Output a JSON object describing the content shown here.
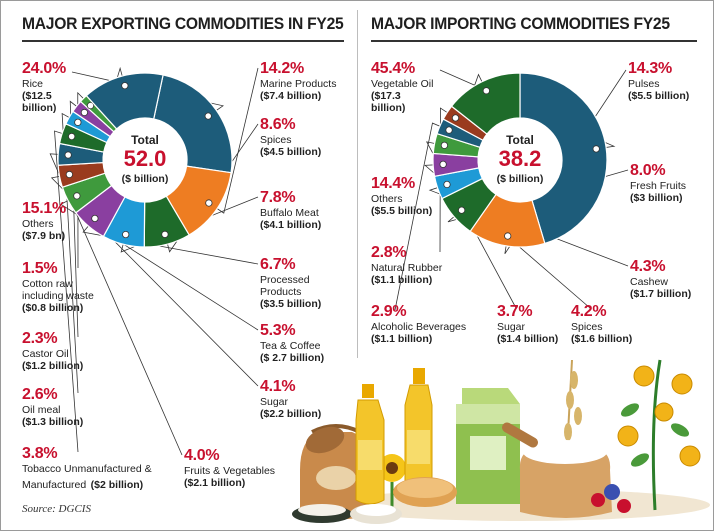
{
  "left": {
    "title": "MAJOR EXPORTING COMMODITIES IN FY25",
    "center": {
      "label": "Total",
      "value": "52.0",
      "unit": "($ billion)"
    },
    "labels": [
      {
        "pct": "24.0%",
        "name": "Rice",
        "amount": "($12.5",
        "amount2": "billion)"
      },
      {
        "pct": "14.2%",
        "name": "Marine Products",
        "amount": "($7.4 billion)"
      },
      {
        "pct": "8.6%",
        "name": "Spices",
        "amount": "($4.5 billion)"
      },
      {
        "pct": "7.8%",
        "name": "Buffalo Meat",
        "amount": "($4.1 billion)"
      },
      {
        "pct": "6.7%",
        "name": "Processed",
        "name2": "Products",
        "amount": "($3.5 billion)"
      },
      {
        "pct": "5.3%",
        "name": "Tea & Coffee",
        "amount": "($ 2.7 billion)"
      },
      {
        "pct": "4.1%",
        "name": "Sugar",
        "amount": "($2.2 billion)"
      },
      {
        "pct": "4.0%",
        "name": "Fruits & Vegetables",
        "amount": "($2.1 billion)"
      },
      {
        "pct": "3.8%",
        "name": "Tobacco Unmanufactured &",
        "name2": "Manufactured",
        "amount": "($2 billion)"
      },
      {
        "pct": "2.6%",
        "name": "Oil meal",
        "amount": "($1.3 billion)"
      },
      {
        "pct": "2.3%",
        "name": "Castor Oil",
        "amount": "($1.2 billion)"
      },
      {
        "pct": "1.5%",
        "name": "Cotton raw",
        "name2": "including waste",
        "amount": "($0.8 billion)"
      },
      {
        "pct": "15.1%",
        "name": "Others",
        "amount": "($7.9 bn)"
      }
    ]
  },
  "right": {
    "title": "MAJOR IMPORTING COMMODITIES FY25",
    "center": {
      "label": "Total",
      "value": "38.2",
      "unit": "($ billion)"
    },
    "labels": [
      {
        "pct": "45.4%",
        "name": "Vegetable Oil",
        "amount": "($17.3",
        "amount2": "billion)"
      },
      {
        "pct": "14.3%",
        "name": "Pulses",
        "amount": "($5.5 billion)"
      },
      {
        "pct": "8.0%",
        "name": "Fresh Fruits",
        "amount": "($3 billion)"
      },
      {
        "pct": "4.3%",
        "name": "Cashew",
        "amount": "($1.7 billion)"
      },
      {
        "pct": "4.2%",
        "name": "Spices",
        "amount": "($1.6 billion)"
      },
      {
        "pct": "3.7%",
        "name": "Sugar",
        "amount": "($1.4 billion)"
      },
      {
        "pct": "2.9%",
        "name": "Alcoholic Beverages",
        "amount": "($1.1 billion)"
      },
      {
        "pct": "2.8%",
        "name": "Natural Rubber",
        "amount": "($1.1 billion)"
      },
      {
        "pct": "14.4%",
        "name": "Others",
        "amount": "($5.5 billion)"
      }
    ]
  },
  "source": "Source: DGCIS",
  "colors": {
    "accent_red": "#c8102e",
    "teal": "#1d5c7a",
    "orange": "#ee7d22",
    "green": "#1e6b2a",
    "sky": "#1e9ad6",
    "purple": "#8a3fa0",
    "olive": "#3f9a3d",
    "brown": "#9a3b1e"
  },
  "chart_data": [
    {
      "type": "pie",
      "title": "MAJOR EXPORTING COMMODITIES IN FY25",
      "unit": "$ billion",
      "total": 52.0,
      "categories": [
        "Rice",
        "Marine Products",
        "Spices",
        "Buffalo Meat",
        "Processed Products",
        "Tea & Coffee",
        "Sugar",
        "Fruits & Vegetables",
        "Tobacco Unmanufactured & Manufactured",
        "Oil meal",
        "Castor Oil",
        "Cotton raw including waste",
        "Others"
      ],
      "values": [
        24.0,
        14.2,
        8.6,
        7.8,
        6.7,
        5.3,
        4.1,
        4.0,
        3.8,
        2.6,
        2.3,
        1.5,
        15.1
      ],
      "amounts": [
        12.5,
        7.4,
        4.5,
        4.1,
        3.5,
        2.7,
        2.2,
        2.1,
        2.0,
        1.3,
        1.2,
        0.8,
        7.9
      ],
      "colors": [
        "#1d5c7a",
        "#ee7d22",
        "#1e6b2a",
        "#1e9ad6",
        "#8a3fa0",
        "#3f9a3d",
        "#9a3b1e",
        "#1d5c7a",
        "#1e6b2a",
        "#1e9ad6",
        "#8a3fa0",
        "#3f9a3d",
        "#1d5c7a"
      ]
    },
    {
      "type": "pie",
      "title": "MAJOR IMPORTING COMMODITIES FY25",
      "unit": "$ billion",
      "total": 38.2,
      "categories": [
        "Vegetable Oil",
        "Pulses",
        "Fresh Fruits",
        "Cashew",
        "Spices",
        "Sugar",
        "Alcoholic Beverages",
        "Natural Rubber",
        "Others"
      ],
      "values": [
        45.4,
        14.3,
        8.0,
        4.3,
        4.2,
        3.7,
        2.9,
        2.8,
        14.4
      ],
      "amounts": [
        17.3,
        5.5,
        3.0,
        1.7,
        1.6,
        1.4,
        1.1,
        1.1,
        5.5
      ],
      "colors": [
        "#1d5c7a",
        "#ee7d22",
        "#1e6b2a",
        "#1e9ad6",
        "#8a3fa0",
        "#3f9a3d",
        "#1d5c7a",
        "#9a3b1e",
        "#1e6b2a"
      ]
    }
  ]
}
